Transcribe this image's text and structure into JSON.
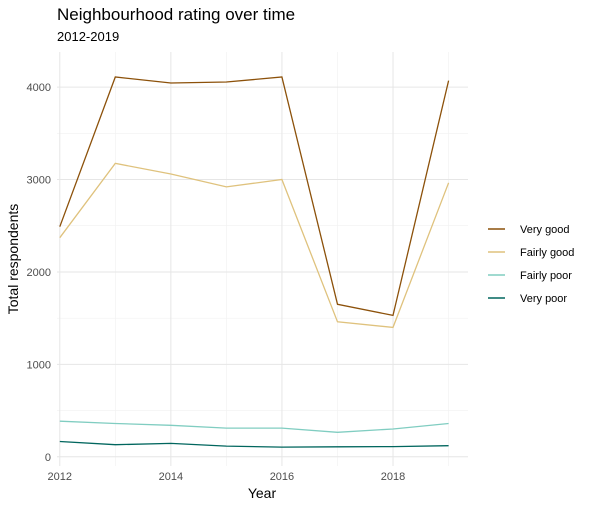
{
  "chart_data": {
    "type": "line",
    "title": "Neighbourhood rating over time",
    "subtitle": "2012-2019",
    "xlabel": "Year",
    "ylabel": "Total respondents",
    "x": [
      2012,
      2013,
      2014,
      2015,
      2016,
      2017,
      2018,
      2019
    ],
    "x_ticks": [
      "2012",
      "2014",
      "2016",
      "2018"
    ],
    "y_ticks": [
      "0",
      "1000",
      "2000",
      "3000",
      "4000"
    ],
    "xlim": [
      2011.95,
      2019.35
    ],
    "ylim": [
      -100,
      4380
    ],
    "grid": true,
    "legend_position": "right",
    "series": [
      {
        "name": "Very good",
        "color": "#8c510a",
        "values": [
          2490,
          4110,
          4045,
          4055,
          4110,
          1650,
          1530,
          4070
        ]
      },
      {
        "name": "Fairly good",
        "color": "#dfc27d",
        "values": [
          2370,
          3175,
          3060,
          2920,
          3000,
          1460,
          1400,
          2965
        ]
      },
      {
        "name": "Fairly poor",
        "color": "#80cdc1",
        "values": [
          385,
          360,
          340,
          310,
          310,
          265,
          300,
          360
        ]
      },
      {
        "name": "Very poor",
        "color": "#01665e",
        "values": [
          165,
          130,
          145,
          115,
          105,
          108,
          110,
          120
        ]
      }
    ]
  }
}
